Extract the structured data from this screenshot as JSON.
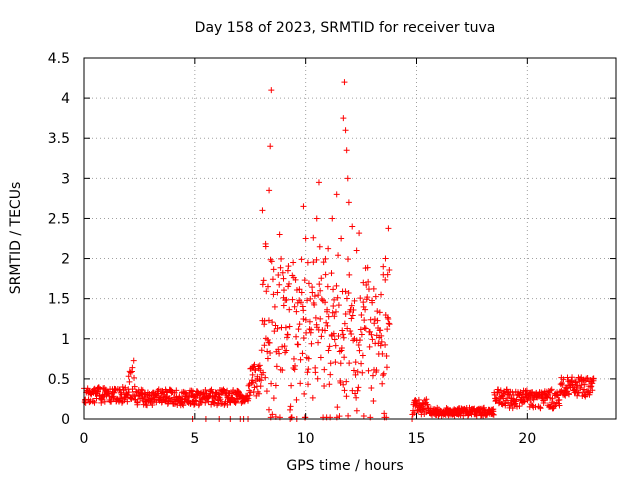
{
  "chart_data": {
    "type": "scatter",
    "title": "Day 158 of 2023, SRMTID for receiver tuva",
    "xlabel": "GPS time / hours",
    "ylabel": "SRMTID / TECUs",
    "xlim": [
      0,
      24
    ],
    "ylim": [
      0,
      4.5
    ],
    "x_ticks": [
      0,
      5,
      10,
      15,
      20
    ],
    "y_ticks": [
      0,
      0.5,
      1,
      1.5,
      2,
      2.5,
      3,
      3.5,
      4,
      4.5
    ],
    "x_tick_labels": [
      "0",
      "5",
      "10",
      "15",
      "20"
    ],
    "y_tick_labels": [
      "0",
      "0.5",
      "1",
      "1.5",
      "2",
      "2.5",
      "3",
      "3.5",
      "4",
      "4.5"
    ],
    "grid": true,
    "marker": "+",
    "color": "#ff0000",
    "series": [
      {
        "name": "SRMTID",
        "segments": [
          {
            "x_start": 0.0,
            "x_end": 2.0,
            "base": 0.3,
            "spread": 0.1
          },
          {
            "x_start": 2.0,
            "x_end": 2.3,
            "base": 0.5,
            "spread": 0.25
          },
          {
            "x_start": 2.3,
            "x_end": 7.0,
            "base": 0.27,
            "spread": 0.1
          },
          {
            "x_start": 7.0,
            "x_end": 7.4,
            "base": 0.25,
            "spread": 0.05
          },
          {
            "x_start": 7.4,
            "x_end": 8.0,
            "base": 0.45,
            "spread": 0.25
          },
          {
            "x_start": 8.0,
            "x_end": 13.8,
            "base": 0.9,
            "spread": 0.7
          },
          {
            "x_start": 14.8,
            "x_end": 15.5,
            "base": 0.15,
            "spread": 0.1
          },
          {
            "x_start": 15.5,
            "x_end": 18.5,
            "base": 0.09,
            "spread": 0.05
          },
          {
            "x_start": 18.5,
            "x_end": 21.5,
            "base": 0.25,
            "spread": 0.12
          },
          {
            "x_start": 21.5,
            "x_end": 23.0,
            "base": 0.4,
            "spread": 0.12
          }
        ],
        "peaks": [
          {
            "x": 8.05,
            "y": 2.6
          },
          {
            "x": 8.2,
            "y": 2.15
          },
          {
            "x": 8.35,
            "y": 2.85
          },
          {
            "x": 8.45,
            "y": 4.1
          },
          {
            "x": 8.4,
            "y": 3.4
          },
          {
            "x": 8.3,
            "y": 1.65
          },
          {
            "x": 9.0,
            "y": 1.75
          },
          {
            "x": 9.2,
            "y": 1.85
          },
          {
            "x": 9.5,
            "y": 1.4
          },
          {
            "x": 9.9,
            "y": 2.65
          },
          {
            "x": 10.0,
            "y": 2.25
          },
          {
            "x": 10.1,
            "y": 1.95
          },
          {
            "x": 10.5,
            "y": 2.5
          },
          {
            "x": 10.6,
            "y": 2.95
          },
          {
            "x": 10.9,
            "y": 1.8
          },
          {
            "x": 11.0,
            "y": 1.65
          },
          {
            "x": 11.2,
            "y": 2.5
          },
          {
            "x": 11.4,
            "y": 2.8
          },
          {
            "x": 11.6,
            "y": 2.25
          },
          {
            "x": 11.7,
            "y": 3.75
          },
          {
            "x": 11.75,
            "y": 4.2
          },
          {
            "x": 11.8,
            "y": 3.6
          },
          {
            "x": 11.85,
            "y": 3.35
          },
          {
            "x": 11.9,
            "y": 3.0
          },
          {
            "x": 11.95,
            "y": 2.7
          },
          {
            "x": 12.1,
            "y": 2.4
          },
          {
            "x": 12.3,
            "y": 2.1
          },
          {
            "x": 12.6,
            "y": 1.7
          },
          {
            "x": 13.0,
            "y": 1.45
          },
          {
            "x": 13.5,
            "y": 1.9
          },
          {
            "x": 13.6,
            "y": 2.0
          },
          {
            "x": 13.7,
            "y": 1.8
          },
          {
            "x": 13.4,
            "y": 1.55
          }
        ],
        "zeros": [
          4.9,
          5.5,
          6.1,
          6.6,
          7.05,
          7.2,
          7.4,
          9.3,
          9.6,
          14.8
        ]
      }
    ]
  }
}
